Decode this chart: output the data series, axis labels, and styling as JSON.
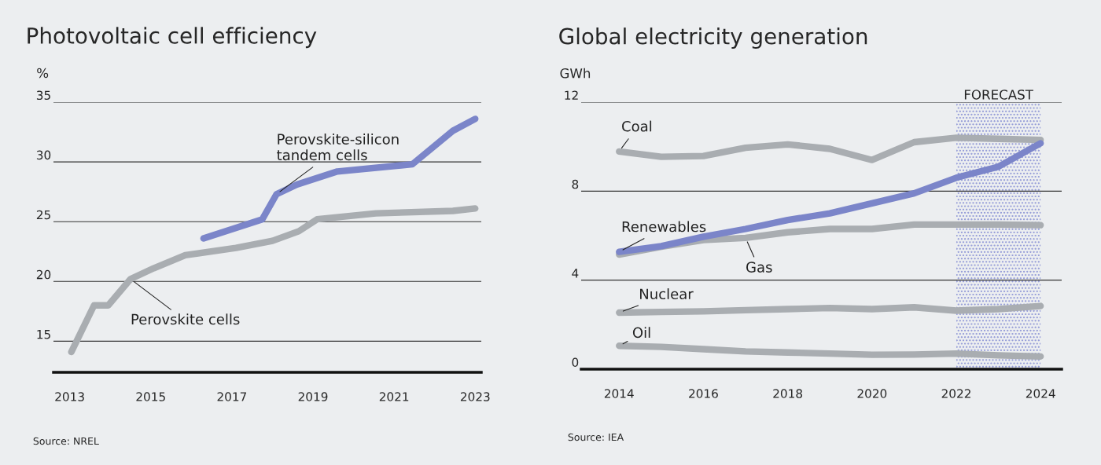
{
  "chart_data": [
    {
      "type": "line",
      "title": "Photovoltaic cell efficiency",
      "ylabel": "%",
      "series": [
        {
          "name": "Perovskite cells",
          "color": "#a9adb1",
          "x": [
            2013.04,
            2013.6,
            2013.95,
            2014.5,
            2015.07,
            2015.85,
            2017.1,
            2018.0,
            2018.65,
            2019.1,
            2020.55,
            2022.45,
            2023.0
          ],
          "values": [
            14.1,
            18.0,
            18.0,
            20.2,
            21.1,
            22.2,
            22.8,
            23.4,
            24.2,
            25.2,
            25.7,
            25.9,
            26.1
          ]
        },
        {
          "name": "Perovskite-silicon\ntandem cells",
          "color": "#7b85c9",
          "x": [
            2016.3,
            2017.75,
            2018.1,
            2018.6,
            2019.6,
            2021.45,
            2022.45,
            2023.0
          ],
          "values": [
            23.6,
            25.2,
            27.3,
            28.1,
            29.2,
            29.8,
            32.6,
            33.6
          ]
        }
      ],
      "xlim": [
        2012.6,
        2023.15
      ],
      "ylim": [
        12.4,
        35
      ],
      "xticks": [
        2013,
        2015,
        2017,
        2019,
        2021,
        2023
      ],
      "yticks": [
        15,
        20,
        25,
        30,
        35
      ],
      "grid": "y",
      "marker": "none",
      "line_style": "solid",
      "annotations": [
        "Source: NREL"
      ]
    },
    {
      "type": "line",
      "title": "Global electricity generation",
      "ylabel": "GWh",
      "x": [
        2014,
        2015,
        2016,
        2017,
        2018,
        2019,
        2020,
        2021,
        2022,
        2023,
        2024
      ],
      "series": [
        {
          "name": "Coal",
          "color": "#a9adb1",
          "values": [
            9.78,
            9.54,
            9.58,
            9.95,
            10.1,
            9.9,
            9.4,
            10.2,
            10.4,
            10.35,
            10.3
          ]
        },
        {
          "name": "Gas",
          "color": "#a9adb1",
          "values": [
            5.15,
            5.5,
            5.8,
            5.9,
            6.15,
            6.3,
            6.3,
            6.5,
            6.5,
            6.5,
            6.47
          ]
        },
        {
          "name": "Renewables",
          "color": "#7b85c9",
          "values": [
            5.27,
            5.53,
            5.95,
            6.3,
            6.7,
            7.0,
            7.45,
            7.9,
            8.6,
            9.1,
            10.15
          ]
        },
        {
          "name": "Nuclear",
          "color": "#a9adb1",
          "values": [
            2.54,
            2.57,
            2.6,
            2.65,
            2.7,
            2.75,
            2.7,
            2.78,
            2.63,
            2.7,
            2.84
          ]
        },
        {
          "name": "Oil",
          "color": "#a9adb1",
          "values": [
            1.05,
            1.0,
            0.9,
            0.8,
            0.75,
            0.7,
            0.65,
            0.66,
            0.7,
            0.62,
            0.57
          ]
        }
      ],
      "xlim": [
        2013.1,
        2024.5
      ],
      "ylim": [
        0,
        12
      ],
      "xticks": [
        2014,
        2016,
        2018,
        2020,
        2022,
        2024
      ],
      "yticks": [
        0,
        4,
        8,
        12
      ],
      "grid": "y",
      "marker": "none",
      "line_style": "solid",
      "bands": [
        {
          "axis": "x",
          "from": 2022,
          "to": 2024,
          "label": "FORECAST",
          "color": "#8f97d6"
        }
      ],
      "annotations": [
        "Source: IEA"
      ]
    }
  ]
}
